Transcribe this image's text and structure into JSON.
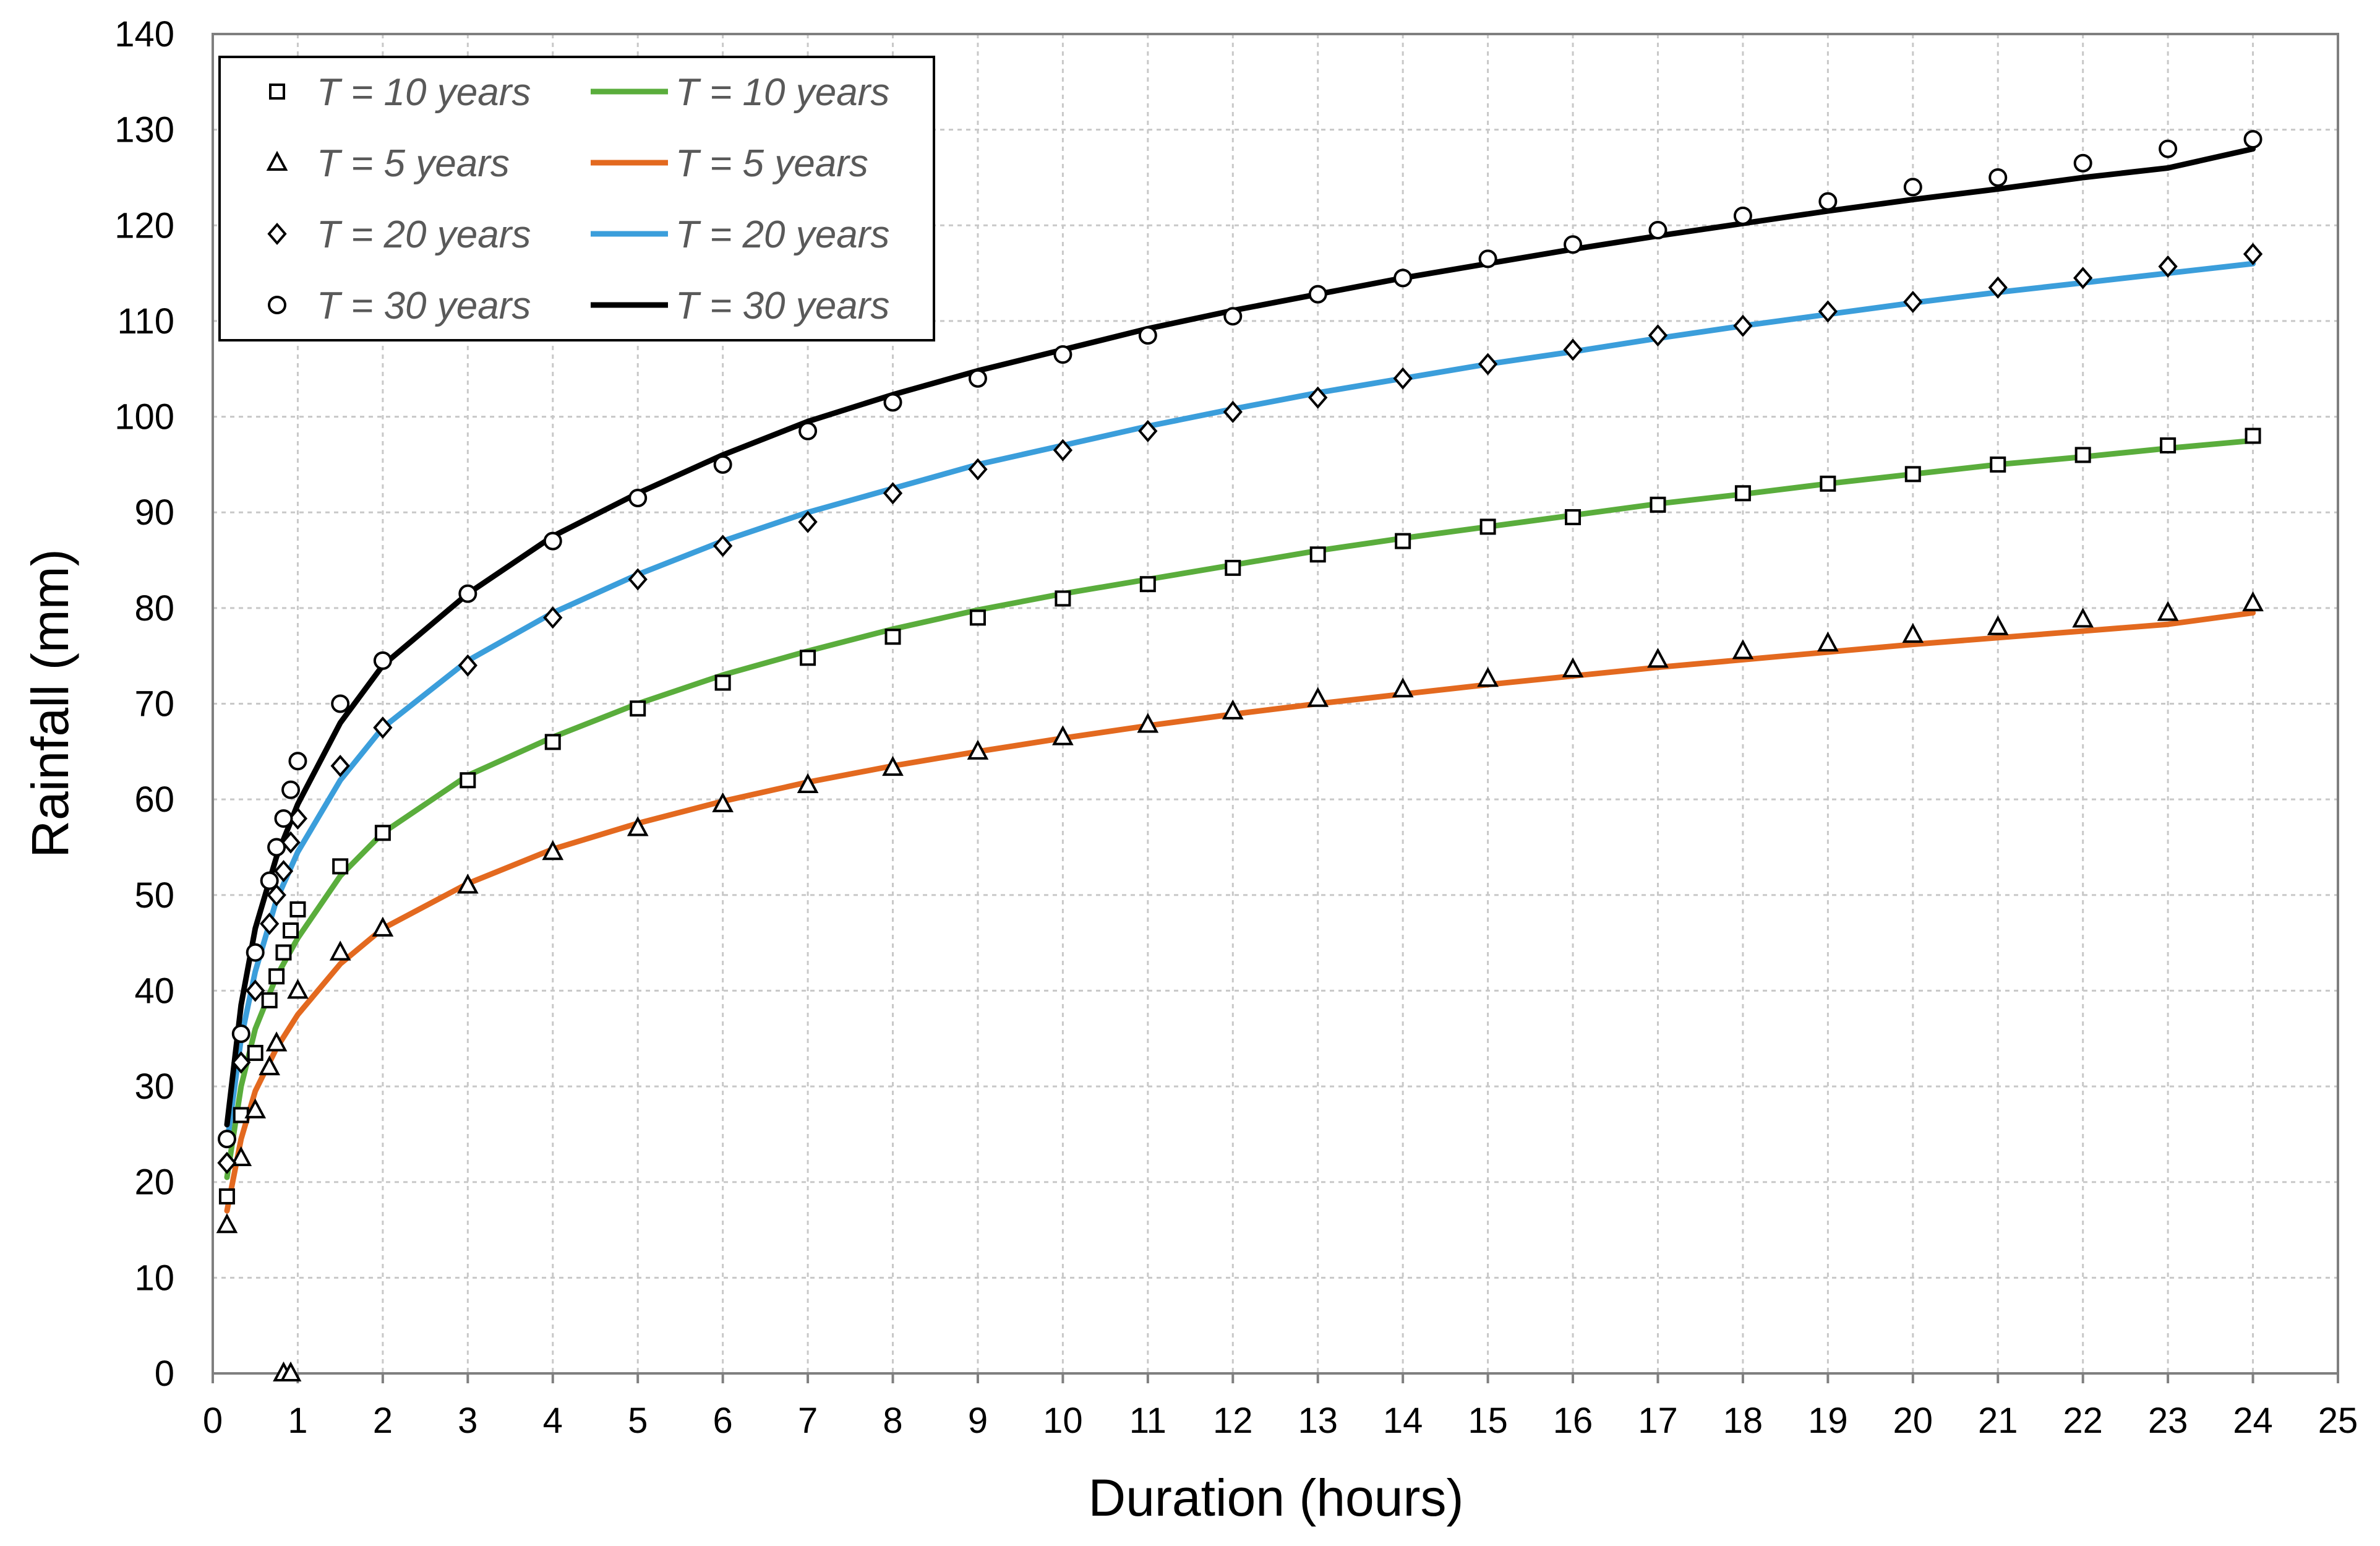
{
  "chart_data": {
    "type": "scatter",
    "title": "",
    "xlabel": "Duration (hours)",
    "ylabel": "Rainfall (mm)",
    "xlim": [
      0,
      25
    ],
    "ylim": [
      0,
      140
    ],
    "x_ticks": [
      0,
      1,
      2,
      3,
      4,
      5,
      6,
      7,
      8,
      9,
      10,
      11,
      12,
      13,
      14,
      15,
      16,
      17,
      18,
      19,
      20,
      21,
      22,
      23,
      24,
      25
    ],
    "y_ticks": [
      0,
      10,
      20,
      30,
      40,
      50,
      60,
      70,
      80,
      90,
      100,
      110,
      120,
      130,
      140
    ],
    "grid": true,
    "legend_position": "top-left",
    "series": [
      {
        "name": "T = 10 years",
        "kind": "marker",
        "marker": "square",
        "color": "#000000",
        "x": [
          0.167,
          0.333,
          0.5,
          0.667,
          0.75,
          0.833,
          0.917,
          1,
          1.5,
          2,
          3,
          4,
          5,
          6,
          7,
          8,
          9,
          10,
          11,
          12,
          13,
          14,
          15,
          16,
          17,
          18,
          19,
          20,
          21,
          22,
          23,
          24
        ],
        "y": [
          18.5,
          27,
          33.5,
          39,
          41.5,
          44,
          46.3,
          48.5,
          53,
          56.5,
          62,
          66,
          69.5,
          72.2,
          74.8,
          77,
          79,
          81,
          82.5,
          84.2,
          85.6,
          87,
          88.5,
          89.5,
          90.8,
          92,
          93,
          94,
          95,
          96,
          97,
          98
        ]
      },
      {
        "name": "T = 5 years",
        "kind": "marker",
        "marker": "triangle",
        "color": "#000000",
        "x": [
          0.167,
          0.333,
          0.5,
          0.667,
          0.75,
          0.833,
          0.917,
          1,
          1.5,
          2,
          3,
          4,
          5,
          6,
          7,
          8,
          9,
          10,
          11,
          12,
          13,
          14,
          15,
          16,
          17,
          18,
          19,
          20,
          21,
          22,
          23,
          24
        ],
        "y": [
          15.5,
          22.5,
          27.5,
          32,
          34.5,
          0,
          0,
          40,
          44,
          46.5,
          51,
          54.5,
          57,
          59.5,
          61.5,
          63.3,
          65,
          66.5,
          67.8,
          69.2,
          70.5,
          71.5,
          72.6,
          73.6,
          74.6,
          75.5,
          76.3,
          77.2,
          78,
          78.8,
          79.5,
          80.5
        ]
      },
      {
        "name": "T = 20 years",
        "kind": "marker",
        "marker": "diamond",
        "color": "#000000",
        "x": [
          0.167,
          0.333,
          0.5,
          0.667,
          0.75,
          0.833,
          0.917,
          1,
          1.5,
          2,
          3,
          4,
          5,
          6,
          7,
          8,
          9,
          10,
          11,
          12,
          13,
          14,
          15,
          16,
          17,
          18,
          19,
          20,
          21,
          22,
          23,
          24
        ],
        "y": [
          22,
          32.5,
          40,
          47,
          50,
          52.5,
          55.5,
          58,
          63.5,
          67.5,
          74,
          79,
          83,
          86.5,
          89,
          92,
          94.5,
          96.5,
          98.5,
          100.5,
          102,
          104,
          105.5,
          107,
          108.5,
          109.5,
          111,
          112,
          113.5,
          114.5,
          115.7,
          117
        ]
      },
      {
        "name": "T = 30 years",
        "kind": "marker",
        "marker": "circle",
        "color": "#000000",
        "x": [
          0.167,
          0.333,
          0.5,
          0.667,
          0.75,
          0.833,
          0.917,
          1,
          1.5,
          2,
          3,
          4,
          5,
          6,
          7,
          8,
          9,
          10,
          11,
          12,
          13,
          14,
          15,
          16,
          17,
          18,
          19,
          20,
          21,
          22,
          23,
          24
        ],
        "y": [
          24.5,
          35.5,
          44,
          51.5,
          55,
          58,
          61,
          64,
          70,
          74.5,
          81.5,
          87,
          91.5,
          95,
          98.5,
          101.5,
          104,
          106.5,
          108.5,
          110.5,
          112.8,
          114.5,
          116.5,
          118,
          119.5,
          121,
          122.5,
          124,
          125,
          126.5,
          128,
          129
        ]
      },
      {
        "name": "T = 10 years",
        "kind": "line",
        "color": "#5aad3c",
        "x": [
          0.167,
          0.333,
          0.5,
          0.75,
          1,
          1.5,
          2,
          3,
          4,
          5,
          6,
          7,
          8,
          9,
          10,
          11,
          12,
          13,
          14,
          15,
          16,
          17,
          18,
          19,
          20,
          21,
          22,
          23,
          24
        ],
        "y": [
          20.5,
          30,
          36,
          41.5,
          45.5,
          52,
          56.5,
          62.5,
          66.5,
          70,
          73,
          75.5,
          77.8,
          79.8,
          81.5,
          83,
          84.5,
          86,
          87.3,
          88.5,
          89.7,
          90.9,
          91.9,
          93,
          94,
          95,
          95.8,
          96.7,
          97.5
        ]
      },
      {
        "name": "T = 5 years",
        "kind": "line",
        "color": "#e3691f",
        "x": [
          0.167,
          0.333,
          0.5,
          0.75,
          1,
          1.5,
          2,
          3,
          4,
          5,
          6,
          7,
          8,
          9,
          10,
          11,
          12,
          13,
          14,
          15,
          16,
          17,
          18,
          19,
          20,
          21,
          22,
          23,
          24
        ],
        "y": [
          17,
          24.5,
          29.5,
          34,
          37.5,
          42.8,
          46.5,
          51.2,
          54.8,
          57.5,
          59.8,
          61.8,
          63.5,
          65,
          66.4,
          67.7,
          68.9,
          70,
          71,
          72,
          72.9,
          73.8,
          74.6,
          75.4,
          76.2,
          76.9,
          77.6,
          78.3,
          79.5
        ]
      },
      {
        "name": "T = 20 years",
        "kind": "line",
        "color": "#3b9edb",
        "x": [
          0.167,
          0.333,
          0.5,
          0.75,
          1,
          1.5,
          2,
          3,
          4,
          5,
          6,
          7,
          8,
          9,
          10,
          11,
          12,
          13,
          14,
          15,
          16,
          17,
          18,
          19,
          20,
          21,
          22,
          23,
          24
        ],
        "y": [
          24,
          35,
          42,
          49.5,
          54.5,
          62,
          67.5,
          74.5,
          79.5,
          83.5,
          87,
          90,
          92.5,
          95,
          97,
          99,
          100.8,
          102.5,
          104,
          105.5,
          106.8,
          108.2,
          109.5,
          110.7,
          111.9,
          113,
          114,
          115,
          116
        ]
      },
      {
        "name": "T = 30 years",
        "kind": "line",
        "color": "#000000",
        "x": [
          0.167,
          0.333,
          0.5,
          0.75,
          1,
          1.5,
          2,
          3,
          4,
          5,
          6,
          7,
          8,
          9,
          10,
          11,
          12,
          13,
          14,
          15,
          16,
          17,
          18,
          19,
          20,
          21,
          22,
          23,
          24
        ],
        "y": [
          26,
          38.5,
          46.5,
          54,
          59.5,
          68,
          74,
          81.5,
          87.5,
          92,
          96,
          99.5,
          102.3,
          104.8,
          107,
          109.2,
          111.1,
          112.8,
          114.5,
          116,
          117.5,
          118.9,
          120.2,
          121.5,
          122.7,
          123.8,
          125,
          126,
          128
        ]
      }
    ],
    "legend": [
      {
        "label": "T = 10 years",
        "marker": "square",
        "line_color": "#5aad3c",
        "line_label": "T = 10 years"
      },
      {
        "label": "T = 5 years",
        "marker": "triangle",
        "line_color": "#e3691f",
        "line_label": "T = 5 years"
      },
      {
        "label": "T = 20 years",
        "marker": "diamond",
        "line_color": "#3b9edb",
        "line_label": "T = 20 years"
      },
      {
        "label": "T = 30 years",
        "marker": "circle",
        "line_color": "#000000",
        "line_label": "T = 30 years"
      }
    ]
  }
}
